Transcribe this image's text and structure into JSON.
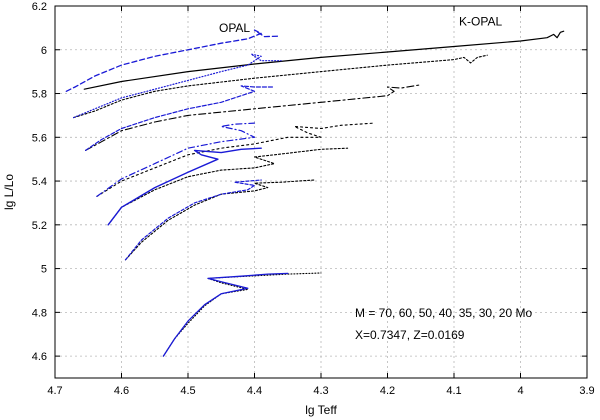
{
  "chart_data": {
    "type": "line",
    "xlabel": "lg Teff",
    "ylabel": "lg L/Lo",
    "xlim": [
      4.7,
      3.9
    ],
    "ylim": [
      4.5,
      6.2
    ],
    "x_ticks": [
      "4.7",
      "4.6",
      "4.5",
      "4.4",
      "4.3",
      "4.2",
      "4.1",
      "4",
      "3.9"
    ],
    "x_tick_values": [
      4.7,
      4.6,
      4.5,
      4.4,
      4.3,
      4.2,
      4.1,
      4.0,
      3.9
    ],
    "y_ticks": [
      "4.6",
      "4.8",
      "5",
      "5.2",
      "5.4",
      "5.6",
      "5.8",
      "6",
      "6.2"
    ],
    "y_tick_values": [
      4.6,
      4.8,
      5.0,
      5.2,
      5.4,
      5.6,
      5.8,
      6.0,
      6.2
    ],
    "grid": true,
    "labels": {
      "opal": {
        "text": "OPAL",
        "x": 4.43,
        "y": 6.1
      },
      "kopal": {
        "text": "K-OPAL",
        "x": 4.06,
        "y": 6.13
      }
    },
    "annotations": [
      "M = 70, 60, 50, 40, 35, 30, 20 Mo",
      "X=0.7347, Z=0.0169"
    ],
    "series": [
      {
        "name": "K-OPAL 70 Mo",
        "color": "#000000",
        "dash": "",
        "width": 1.2,
        "points": [
          [
            4.656,
            5.82
          ],
          [
            4.6,
            5.855
          ],
          [
            4.5,
            5.9
          ],
          [
            4.4,
            5.935
          ],
          [
            4.3,
            5.965
          ],
          [
            4.2,
            5.99
          ],
          [
            4.1,
            6.015
          ],
          [
            4.0,
            6.04
          ],
          [
            3.96,
            6.055
          ],
          [
            3.95,
            6.07
          ],
          [
            3.945,
            6.055
          ],
          [
            3.94,
            6.08
          ],
          [
            3.935,
            6.085
          ]
        ]
      },
      {
        "name": "OPAL 70 Mo",
        "color": "#1a1ad6",
        "dash": "5,3",
        "width": 1.3,
        "points": [
          [
            4.683,
            5.81
          ],
          [
            4.67,
            5.83
          ],
          [
            4.64,
            5.88
          ],
          [
            4.6,
            5.93
          ],
          [
            4.55,
            5.97
          ],
          [
            4.5,
            6.0
          ],
          [
            4.45,
            6.03
          ],
          [
            4.41,
            6.05
          ],
          [
            4.39,
            6.075
          ],
          [
            4.4,
            6.09
          ],
          [
            4.385,
            6.06
          ],
          [
            4.365,
            6.062
          ]
        ]
      },
      {
        "name": "K-OPAL 60 Mo",
        "color": "#000000",
        "dash": "2,2",
        "width": 1.1,
        "points": [
          [
            4.672,
            5.69
          ],
          [
            4.64,
            5.72
          ],
          [
            4.6,
            5.77
          ],
          [
            4.55,
            5.81
          ],
          [
            4.5,
            5.835
          ],
          [
            4.4,
            5.87
          ],
          [
            4.3,
            5.9
          ],
          [
            4.2,
            5.93
          ],
          [
            4.1,
            5.955
          ],
          [
            4.085,
            5.965
          ],
          [
            4.075,
            5.94
          ],
          [
            4.065,
            5.965
          ],
          [
            4.05,
            5.975
          ]
        ]
      },
      {
        "name": "OPAL 60 Mo",
        "color": "#1a1ad6",
        "dash": "1,2",
        "width": 1.2,
        "points": [
          [
            4.672,
            5.69
          ],
          [
            4.64,
            5.73
          ],
          [
            4.6,
            5.78
          ],
          [
            4.55,
            5.82
          ],
          [
            4.5,
            5.86
          ],
          [
            4.45,
            5.9
          ],
          [
            4.41,
            5.93
          ],
          [
            4.39,
            5.97
          ],
          [
            4.405,
            5.98
          ],
          [
            4.39,
            5.95
          ],
          [
            4.36,
            5.95
          ]
        ]
      },
      {
        "name": "K-OPAL 50 Mo",
        "color": "#000000",
        "dash": "7,3,2,3",
        "width": 1.1,
        "points": [
          [
            4.654,
            5.54
          ],
          [
            4.63,
            5.58
          ],
          [
            4.6,
            5.63
          ],
          [
            4.55,
            5.67
          ],
          [
            4.5,
            5.7
          ],
          [
            4.4,
            5.73
          ],
          [
            4.3,
            5.76
          ],
          [
            4.2,
            5.79
          ],
          [
            4.19,
            5.81
          ],
          [
            4.2,
            5.83
          ],
          [
            4.18,
            5.825
          ],
          [
            4.15,
            5.84
          ]
        ]
      },
      {
        "name": "OPAL 50 Mo",
        "color": "#1a1ad6",
        "dash": "4,2",
        "width": 1.2,
        "points": [
          [
            4.654,
            5.54
          ],
          [
            4.63,
            5.59
          ],
          [
            4.6,
            5.64
          ],
          [
            4.55,
            5.69
          ],
          [
            4.5,
            5.73
          ],
          [
            4.45,
            5.76
          ],
          [
            4.42,
            5.79
          ],
          [
            4.4,
            5.81
          ],
          [
            4.42,
            5.835
          ],
          [
            4.4,
            5.83
          ],
          [
            4.37,
            5.83
          ]
        ]
      },
      {
        "name": "K-OPAL 40 Mo",
        "color": "#000000",
        "dash": "2,3",
        "width": 1.1,
        "points": [
          [
            4.637,
            5.33
          ],
          [
            4.6,
            5.4
          ],
          [
            4.55,
            5.46
          ],
          [
            4.5,
            5.52
          ],
          [
            4.45,
            5.55
          ],
          [
            4.4,
            5.57
          ],
          [
            4.35,
            5.6
          ],
          [
            4.3,
            5.6
          ],
          [
            4.32,
            5.62
          ],
          [
            4.34,
            5.65
          ],
          [
            4.3,
            5.64
          ],
          [
            4.27,
            5.655
          ],
          [
            4.22,
            5.665
          ]
        ]
      },
      {
        "name": "OPAL 40 Mo",
        "color": "#1a1ad6",
        "dash": "6,3,1,3",
        "width": 1.2,
        "points": [
          [
            4.637,
            5.33
          ],
          [
            4.6,
            5.41
          ],
          [
            4.55,
            5.48
          ],
          [
            4.5,
            5.55
          ],
          [
            4.45,
            5.58
          ],
          [
            4.4,
            5.6
          ],
          [
            4.42,
            5.63
          ],
          [
            4.45,
            5.65
          ],
          [
            4.43,
            5.66
          ],
          [
            4.4,
            5.665
          ]
        ]
      },
      {
        "name": "K-OPAL 35 Mo",
        "color": "#000000",
        "dash": "2,2",
        "width": 1.1,
        "points": [
          [
            4.62,
            5.2
          ],
          [
            4.6,
            5.28
          ],
          [
            4.55,
            5.36
          ],
          [
            4.5,
            5.42
          ],
          [
            4.45,
            5.45
          ],
          [
            4.4,
            5.46
          ],
          [
            4.37,
            5.48
          ],
          [
            4.4,
            5.51
          ],
          [
            4.37,
            5.52
          ],
          [
            4.3,
            5.545
          ],
          [
            4.26,
            5.55
          ]
        ]
      },
      {
        "name": "OPAL 35 Mo",
        "color": "#1a1ad6",
        "dash": "",
        "width": 1.4,
        "points": [
          [
            4.62,
            5.2
          ],
          [
            4.6,
            5.28
          ],
          [
            4.55,
            5.37
          ],
          [
            4.5,
            5.44
          ],
          [
            4.455,
            5.5
          ],
          [
            4.48,
            5.52
          ],
          [
            4.49,
            5.54
          ],
          [
            4.45,
            5.53
          ],
          [
            4.42,
            5.545
          ],
          [
            4.39,
            5.55
          ]
        ]
      },
      {
        "name": "K-OPAL 30 Mo",
        "color": "#000000",
        "dash": "2,2",
        "width": 1.1,
        "points": [
          [
            4.594,
            5.04
          ],
          [
            4.57,
            5.12
          ],
          [
            4.53,
            5.22
          ],
          [
            4.49,
            5.29
          ],
          [
            4.45,
            5.34
          ],
          [
            4.4,
            5.355
          ],
          [
            4.38,
            5.37
          ],
          [
            4.4,
            5.39
          ],
          [
            4.36,
            5.395
          ],
          [
            4.31,
            5.405
          ]
        ]
      },
      {
        "name": "OPAL 30 Mo",
        "color": "#1a1ad6",
        "dash": "3,2",
        "width": 1.2,
        "points": [
          [
            4.594,
            5.04
          ],
          [
            4.57,
            5.13
          ],
          [
            4.53,
            5.23
          ],
          [
            4.49,
            5.3
          ],
          [
            4.45,
            5.34
          ],
          [
            4.41,
            5.36
          ],
          [
            4.4,
            5.38
          ],
          [
            4.43,
            5.395
          ],
          [
            4.41,
            5.4
          ],
          [
            4.39,
            5.405
          ]
        ]
      },
      {
        "name": "K-OPAL 20 Mo",
        "color": "#000000",
        "dash": "1,2",
        "width": 1.1,
        "points": [
          [
            4.537,
            4.6
          ],
          [
            4.52,
            4.68
          ],
          [
            4.5,
            4.75
          ],
          [
            4.475,
            4.83
          ],
          [
            4.45,
            4.885
          ],
          [
            4.41,
            4.905
          ],
          [
            4.45,
            4.935
          ],
          [
            4.47,
            4.955
          ],
          [
            4.41,
            4.965
          ],
          [
            4.35,
            4.975
          ],
          [
            4.3,
            4.98
          ]
        ]
      },
      {
        "name": "OPAL 20 Mo",
        "color": "#1a1ad6",
        "dash": "",
        "width": 1.3,
        "points": [
          [
            4.537,
            4.6
          ],
          [
            4.52,
            4.68
          ],
          [
            4.5,
            4.76
          ],
          [
            4.475,
            4.835
          ],
          [
            4.45,
            4.885
          ],
          [
            4.41,
            4.91
          ],
          [
            4.45,
            4.94
          ],
          [
            4.47,
            4.955
          ],
          [
            4.42,
            4.965
          ],
          [
            4.38,
            4.975
          ],
          [
            4.35,
            4.978
          ]
        ]
      }
    ]
  }
}
